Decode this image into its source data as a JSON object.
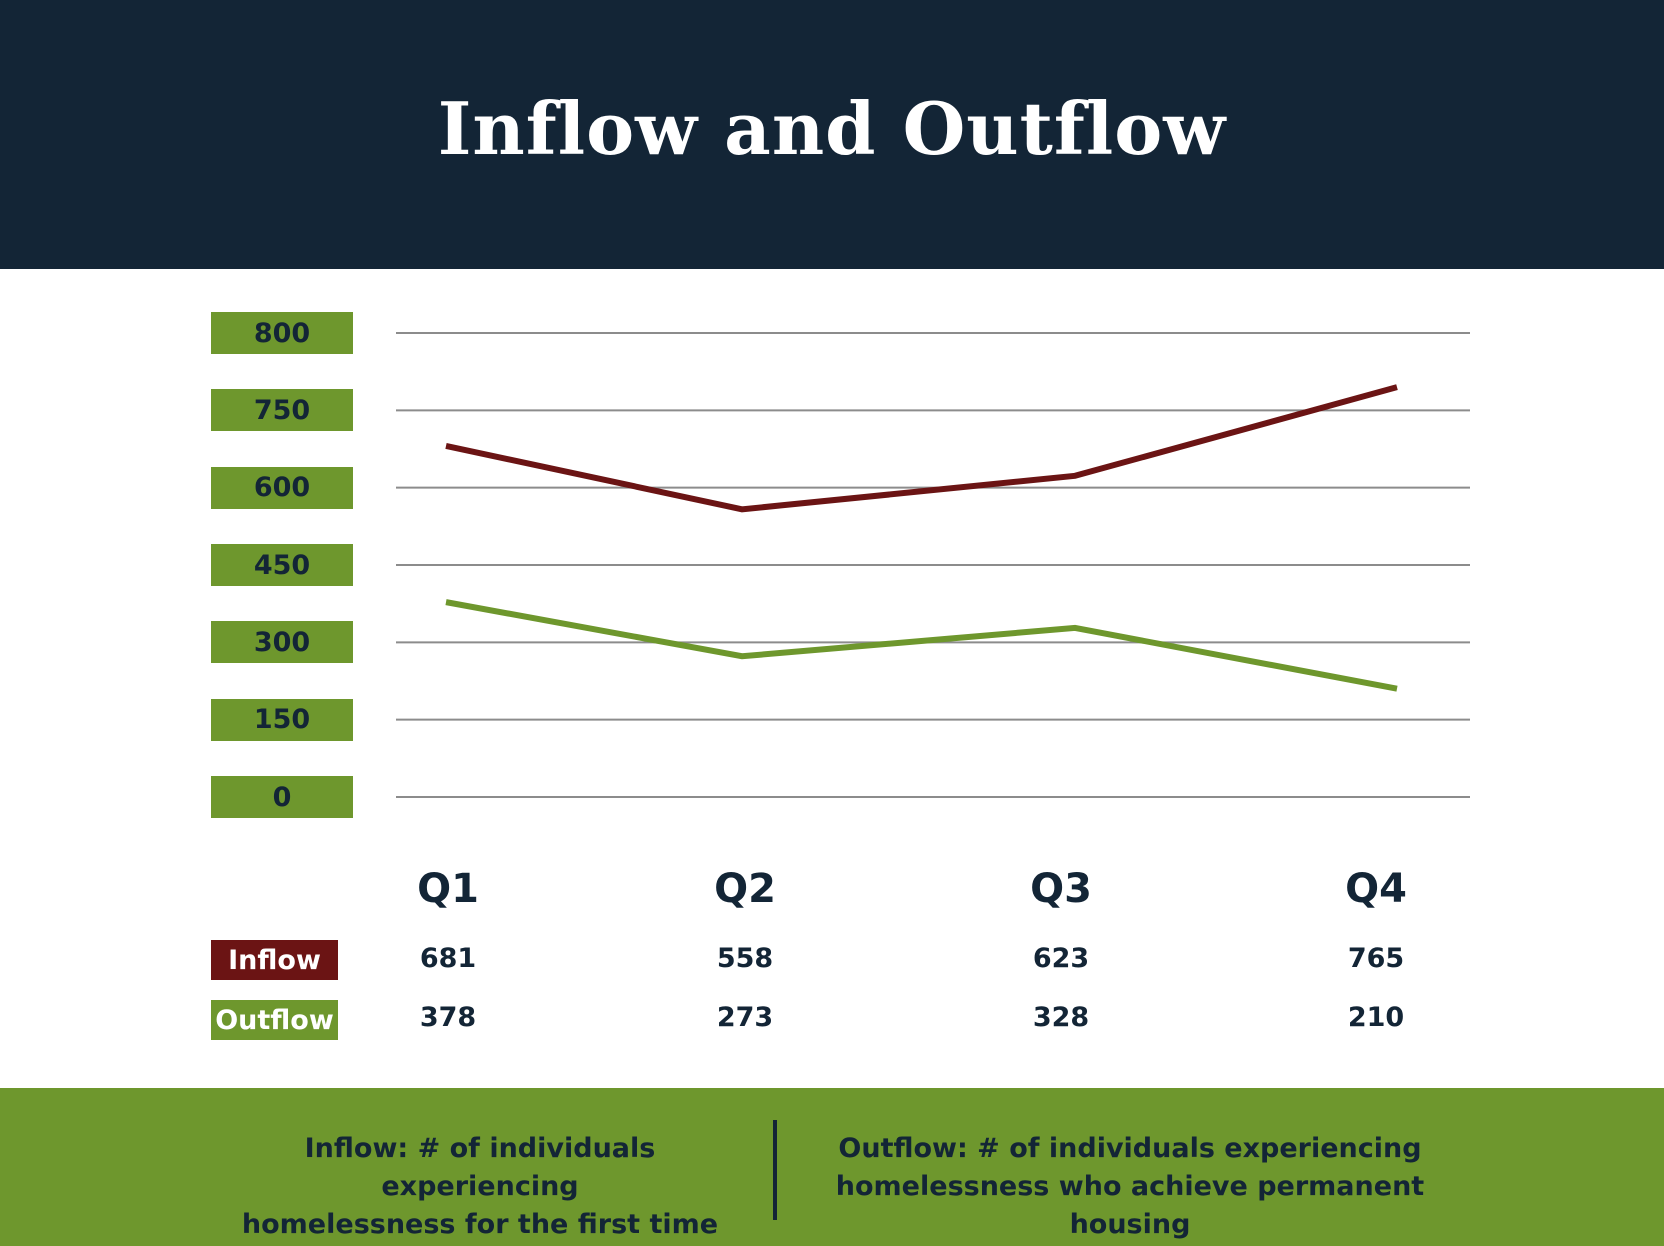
{
  "chart_data": {
    "type": "line",
    "title": "Inflow and Outflow",
    "categories": [
      "Q1",
      "Q2",
      "Q3",
      "Q4"
    ],
    "y_ticks": [
      "800",
      "750",
      "600",
      "450",
      "300",
      "150",
      "0"
    ],
    "ylim": [
      0,
      800
    ],
    "grid": true,
    "series": [
      {
        "name": "Inflow",
        "values": [
          681,
          558,
          623,
          765
        ],
        "color": "#6b1414"
      },
      {
        "name": "Outflow",
        "values": [
          378,
          273,
          328,
          210
        ],
        "color": "#6e972d"
      }
    ]
  },
  "footer": {
    "inflow_definition": "Inflow: # of individuals experiencing\nhomelessness for the first time",
    "outflow_definition": "Outflow: # of individuals experiencing\nhomelessness who achieve permanent housing"
  },
  "colors": {
    "navy": "#132536",
    "green": "#6e972d",
    "maroon": "#6b1414",
    "gridline": "#8c8c8c"
  }
}
